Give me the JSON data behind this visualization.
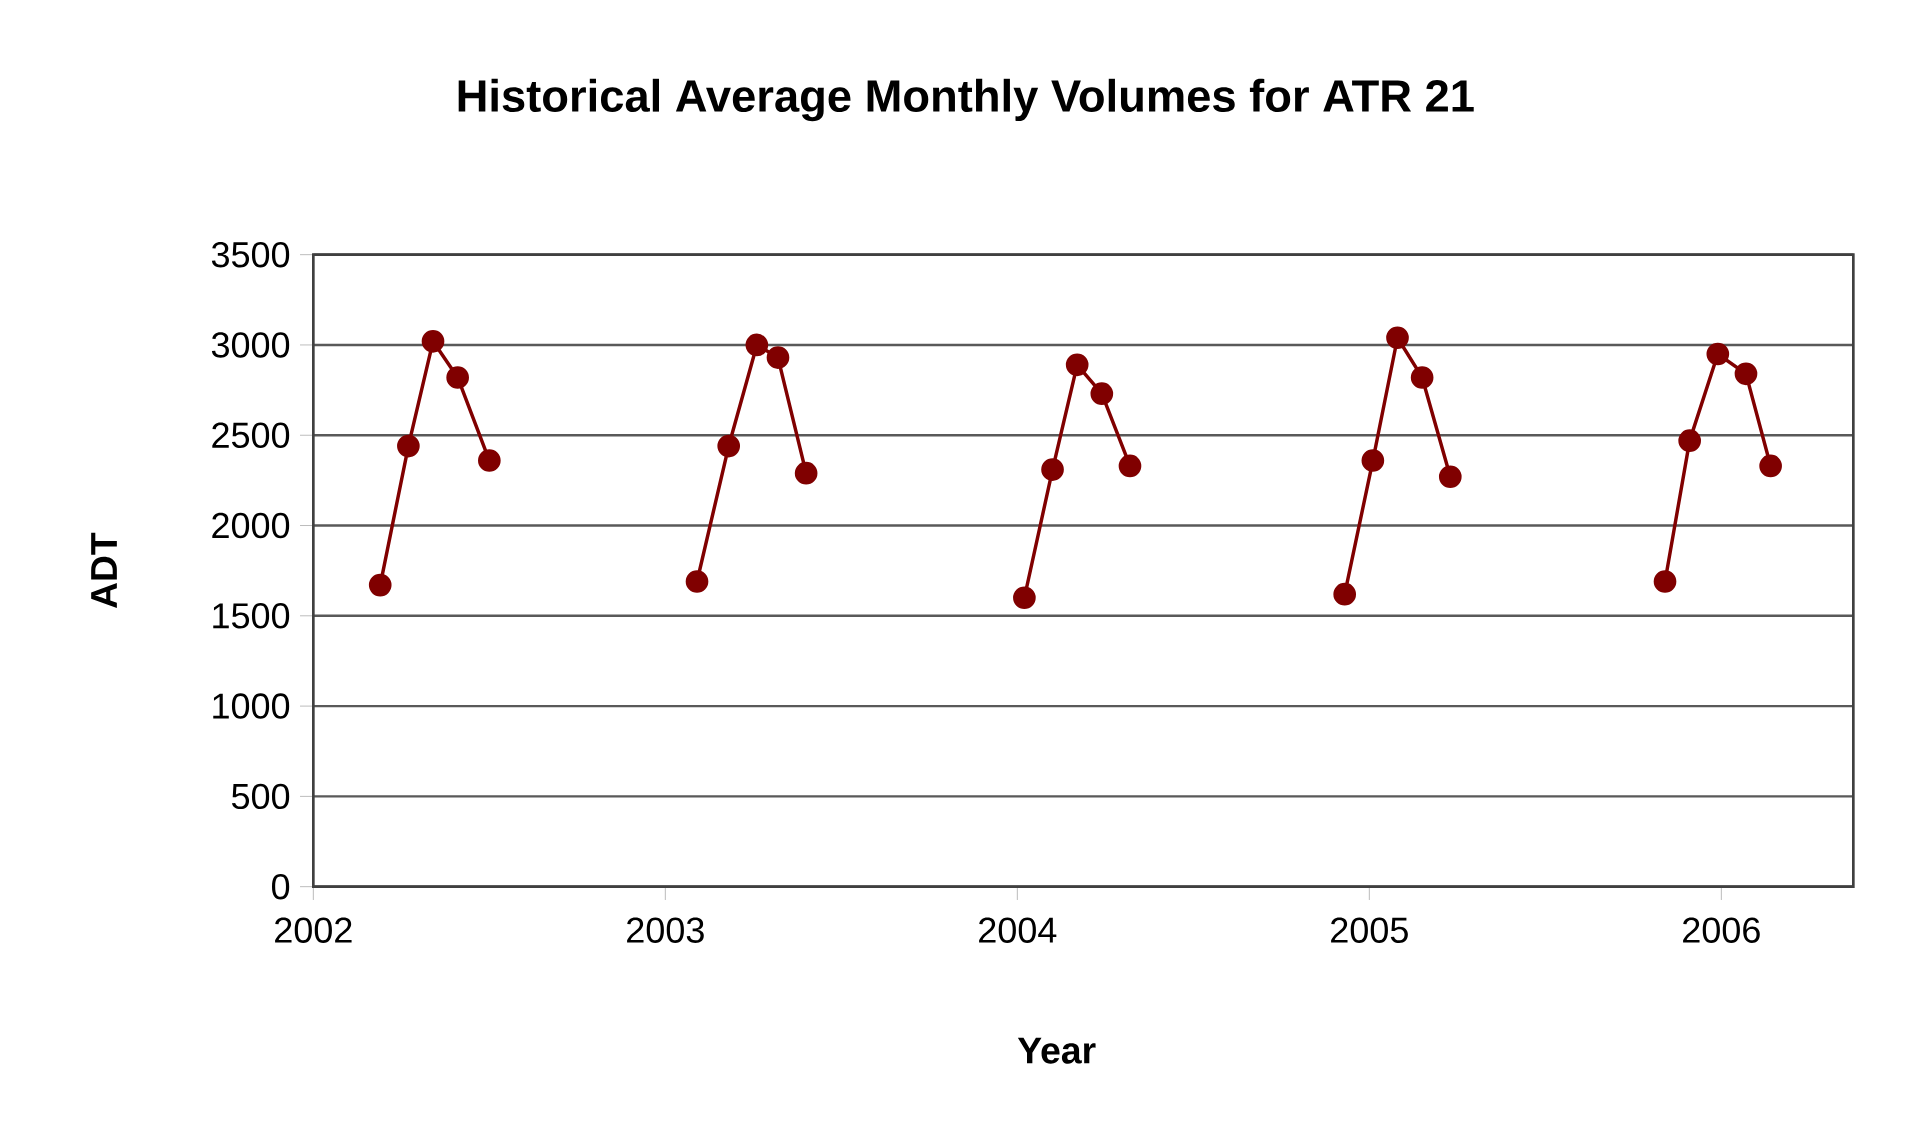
{
  "chart_data": {
    "type": "line",
    "title": "Historical Average Monthly Volumes for ATR 21",
    "xlabel": "Year",
    "ylabel": "ADT",
    "x": [
      2002.19,
      2002.27,
      2002.34,
      2002.41,
      2002.5,
      2002.8,
      2003.09,
      2003.18,
      2003.26,
      2003.32,
      2003.4,
      2003.7,
      2004.02,
      2004.1,
      2004.17,
      2004.24,
      2004.32,
      2004.6,
      2004.93,
      2005.01,
      2005.08,
      2005.15,
      2005.23,
      2005.5,
      2005.84,
      2005.91,
      2005.99,
      2006.07,
      2006.14
    ],
    "series": [
      {
        "color": "#800000",
        "values": [
          1670,
          2440,
          3020,
          2820,
          2360,
          null,
          1690,
          2440,
          3000,
          2930,
          2290,
          null,
          1600,
          2310,
          2890,
          2730,
          2330,
          null,
          1620,
          2360,
          3040,
          2820,
          2270,
          null,
          1690,
          2470,
          2950,
          2840,
          2330
        ]
      }
    ],
    "xlim": [
      2002,
      2006.375
    ],
    "xticks": [
      2002,
      2003,
      2004,
      2005,
      2006
    ],
    "ylim": [
      0,
      3500
    ],
    "yticks": [
      0,
      500,
      1000,
      1500,
      2000,
      2500,
      3000,
      3500
    ],
    "grid": "y",
    "marker": "circle",
    "line_style": "solid"
  }
}
